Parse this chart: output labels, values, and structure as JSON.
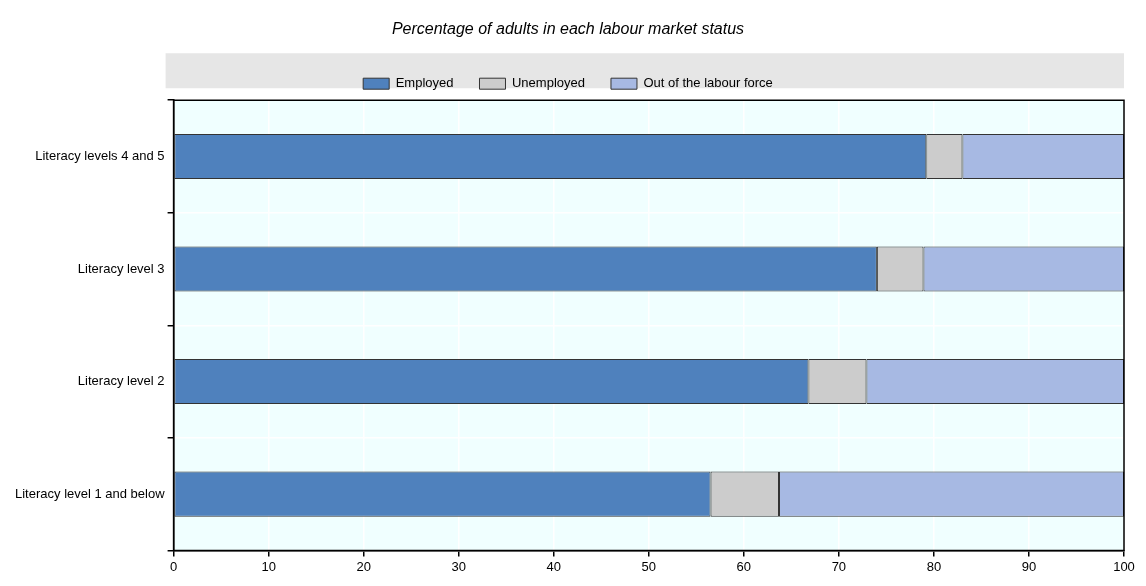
{
  "chart_data": {
    "type": "bar",
    "orientation": "horizontal",
    "stacked": true,
    "title": "Percentage of adults in each labour market status",
    "categories": [
      "Literacy levels 4 and 5",
      "Literacy level 3",
      "Literacy level 2",
      "Literacy level 1 and below"
    ],
    "series": [
      {
        "name": "Employed",
        "color": "#4f81bd",
        "values": [
          79.2,
          74.0,
          66.8,
          56.5
        ]
      },
      {
        "name": "Unemployed",
        "color": "#cccccc",
        "values": [
          3.8,
          4.9,
          6.1,
          7.2
        ]
      },
      {
        "name": "Out of the labour force",
        "color": "#a7b9e3",
        "values": [
          17.0,
          21.1,
          27.1,
          36.3
        ]
      }
    ],
    "xlim": [
      0,
      100
    ],
    "xticks": [
      0,
      10,
      20,
      30,
      40,
      50,
      60,
      70,
      80,
      90,
      100
    ],
    "grid": true,
    "legend": "top"
  }
}
